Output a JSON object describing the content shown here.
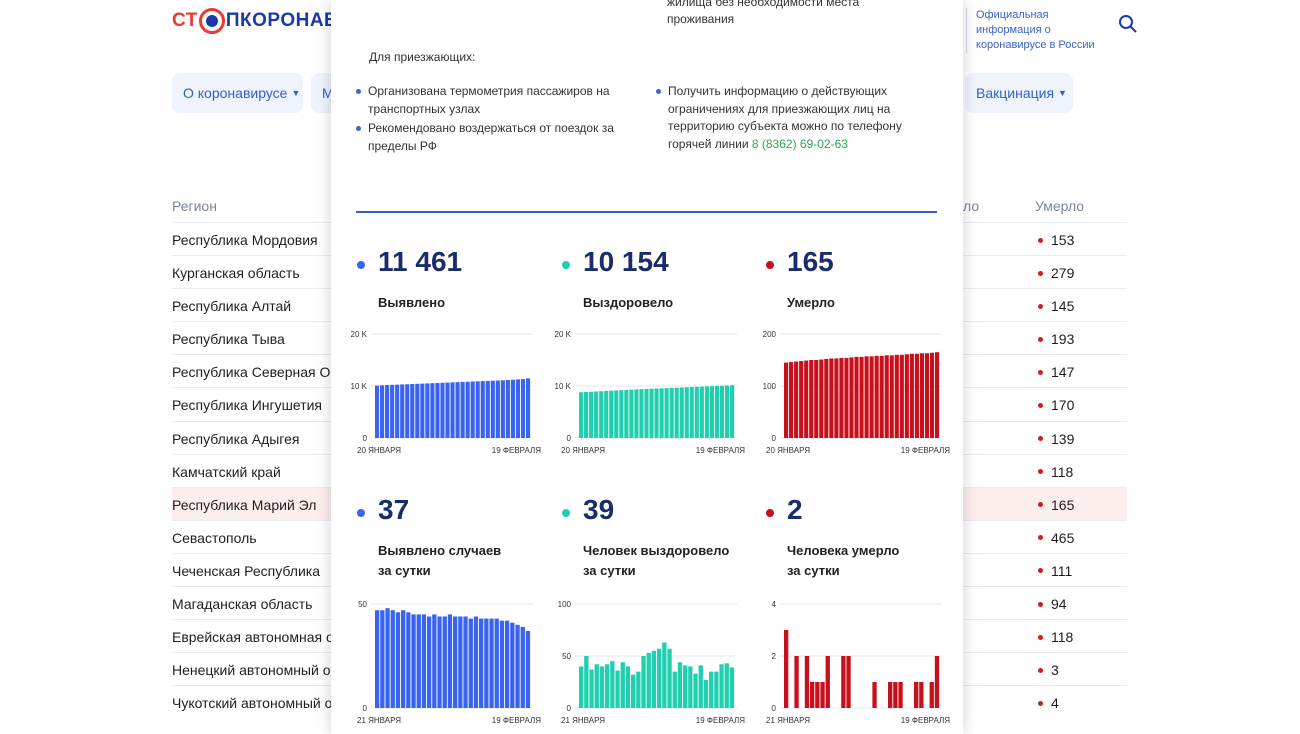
{
  "header": {
    "logo_part1": "СТ",
    "logo_part2": "ПКОРОНАВИ",
    "official_info": "Официальная информация о коронавирусе в России"
  },
  "nav": {
    "about": "О коронавирусе",
    "partial": "М",
    "vaccination": "Вакцинация"
  },
  "table": {
    "col_region": "Регион",
    "col_partial": "ло",
    "col_dead": "Умерло",
    "rows": [
      {
        "region": "Республика Мордовия",
        "dead": "153"
      },
      {
        "region": "Курганская область",
        "dead": "279"
      },
      {
        "region": "Республика Алтай",
        "dead": "145"
      },
      {
        "region": "Республика Тыва",
        "dead": "193"
      },
      {
        "region": "Республика Северная Осе",
        "dead": "147"
      },
      {
        "region": "Республика Ингушетия",
        "dead": "170"
      },
      {
        "region": "Республика Адыгея",
        "dead": "139"
      },
      {
        "region": "Камчатский край",
        "dead": "118"
      },
      {
        "region": "Республика Марий Эл",
        "dead": "165"
      },
      {
        "region": "Севастополь",
        "dead": "465"
      },
      {
        "region": "Чеченская Республика",
        "dead": "111"
      },
      {
        "region": "Магаданская область",
        "dead": "94"
      },
      {
        "region": "Еврейская автономная об",
        "dead": "118"
      },
      {
        "region": "Ненецкий автономный ок",
        "dead": "3"
      },
      {
        "region": "Чукотский автономный о",
        "dead": "4"
      }
    ]
  },
  "modal": {
    "top_text": "жилища без необходимости места проживания",
    "arrivals_label": "Для приезжающих:",
    "bullets_left": [
      "Организована термометрия пассажиров на транспортных узлах",
      "Рекомендовано воздержаться от поездок за пределы РФ"
    ],
    "bullet_right": "Получить информацию о действующих ограничениях для приезжающих лиц на территорию субъекта можно по телефону горячей линии",
    "phone": "8 (8362) 69-02-63",
    "stats": [
      {
        "value": "11 461",
        "label1": "Выявлено",
        "label2": "",
        "color": "#3a63f0"
      },
      {
        "value": "10 154",
        "label1": "Выздоровело",
        "label2": "",
        "color": "#1fcfae"
      },
      {
        "value": "165",
        "label1": "Умерло",
        "label2": "",
        "color": "#c8101c"
      },
      {
        "value": "37",
        "label1": "Выявлено случаев",
        "label2": "за сутки",
        "color": "#3a63f0"
      },
      {
        "value": "39",
        "label1": "Человек выздоровело",
        "label2": "за сутки",
        "color": "#1fcfae"
      },
      {
        "value": "2",
        "label1": "Человека умерло",
        "label2": "за сутки",
        "color": "#c8101c"
      }
    ]
  },
  "chart_data": [
    {
      "type": "bar",
      "title": "Выявлено",
      "ylim": [
        0,
        20000
      ],
      "yticks": [
        "20 K",
        "10 K",
        "0"
      ],
      "x_start": "20 ЯНВАРЯ",
      "x_end": "19 ФЕВРАЛЯ",
      "color": "#3a63f0",
      "values": [
        10090,
        10140,
        10180,
        10220,
        10260,
        10300,
        10340,
        10380,
        10420,
        10460,
        10500,
        10540,
        10580,
        10620,
        10660,
        10700,
        10740,
        10780,
        10820,
        10860,
        10900,
        10940,
        10980,
        11020,
        11060,
        11100,
        11150,
        11200,
        11260,
        11330,
        11461
      ]
    },
    {
      "type": "bar",
      "title": "Выздоровело",
      "ylim": [
        0,
        20000
      ],
      "yticks": [
        "20 K",
        "10 K",
        "0"
      ],
      "x_start": "20 ЯНВАРЯ",
      "x_end": "19 ФЕВРАЛЯ",
      "color": "#1fcfae",
      "values": [
        8800,
        8850,
        8900,
        8950,
        9000,
        9050,
        9100,
        9150,
        9200,
        9250,
        9300,
        9350,
        9400,
        9440,
        9480,
        9520,
        9560,
        9600,
        9640,
        9680,
        9720,
        9760,
        9800,
        9840,
        9880,
        9920,
        9960,
        10000,
        10050,
        10100,
        10154
      ]
    },
    {
      "type": "bar",
      "title": "Умерло",
      "ylim": [
        0,
        200
      ],
      "yticks": [
        "200",
        "100",
        "0"
      ],
      "x_start": "20 ЯНВАРЯ",
      "x_end": "19 ФЕВРАЛЯ",
      "color": "#c8101c",
      "values": [
        145,
        146,
        147,
        148,
        149,
        150,
        150,
        151,
        152,
        153,
        153,
        154,
        154,
        155,
        156,
        156,
        157,
        157,
        158,
        158,
        159,
        159,
        160,
        160,
        161,
        162,
        162,
        163,
        163,
        164,
        165
      ]
    },
    {
      "type": "bar",
      "title": "Выявлено случаев за сутки",
      "ylim": [
        0,
        50
      ],
      "yticks": [
        "50",
        "0"
      ],
      "x_start": "21 ЯНВАРЯ",
      "x_end": "19 ФЕВРАЛЯ",
      "color": "#3a63f0",
      "values": [
        47,
        47,
        48,
        47,
        46,
        47,
        46,
        45,
        45,
        45,
        44,
        45,
        44,
        44,
        45,
        44,
        44,
        44,
        43,
        44,
        43,
        43,
        43,
        43,
        42,
        42,
        41,
        40,
        39,
        37
      ]
    },
    {
      "type": "bar",
      "title": "Человек выздоровело за сутки",
      "ylim": [
        0,
        100
      ],
      "yticks": [
        "100",
        "50",
        "0"
      ],
      "x_start": "21 ЯНВАРЯ",
      "x_end": "19 ФЕВРАЛЯ",
      "color": "#1fcfae",
      "values": [
        40,
        50,
        37,
        42,
        40,
        42,
        45,
        36,
        44,
        40,
        32,
        35,
        50,
        53,
        55,
        57,
        63,
        57,
        35,
        44,
        41,
        40,
        33,
        41,
        27,
        35,
        35,
        42,
        43,
        39
      ]
    },
    {
      "type": "bar",
      "title": "Человека умерло за сутки",
      "ylim": [
        0,
        4
      ],
      "yticks": [
        "4",
        "2",
        "0"
      ],
      "x_start": "21 ЯНВАРЯ",
      "x_end": "19 ФЕВРАЛЯ",
      "color": "#c8101c",
      "values": [
        3,
        0,
        2,
        0,
        2,
        1,
        1,
        1,
        2,
        0,
        0,
        2,
        2,
        0,
        0,
        0,
        0,
        1,
        0,
        0,
        1,
        1,
        1,
        0,
        0,
        1,
        1,
        0,
        1,
        2
      ]
    }
  ]
}
